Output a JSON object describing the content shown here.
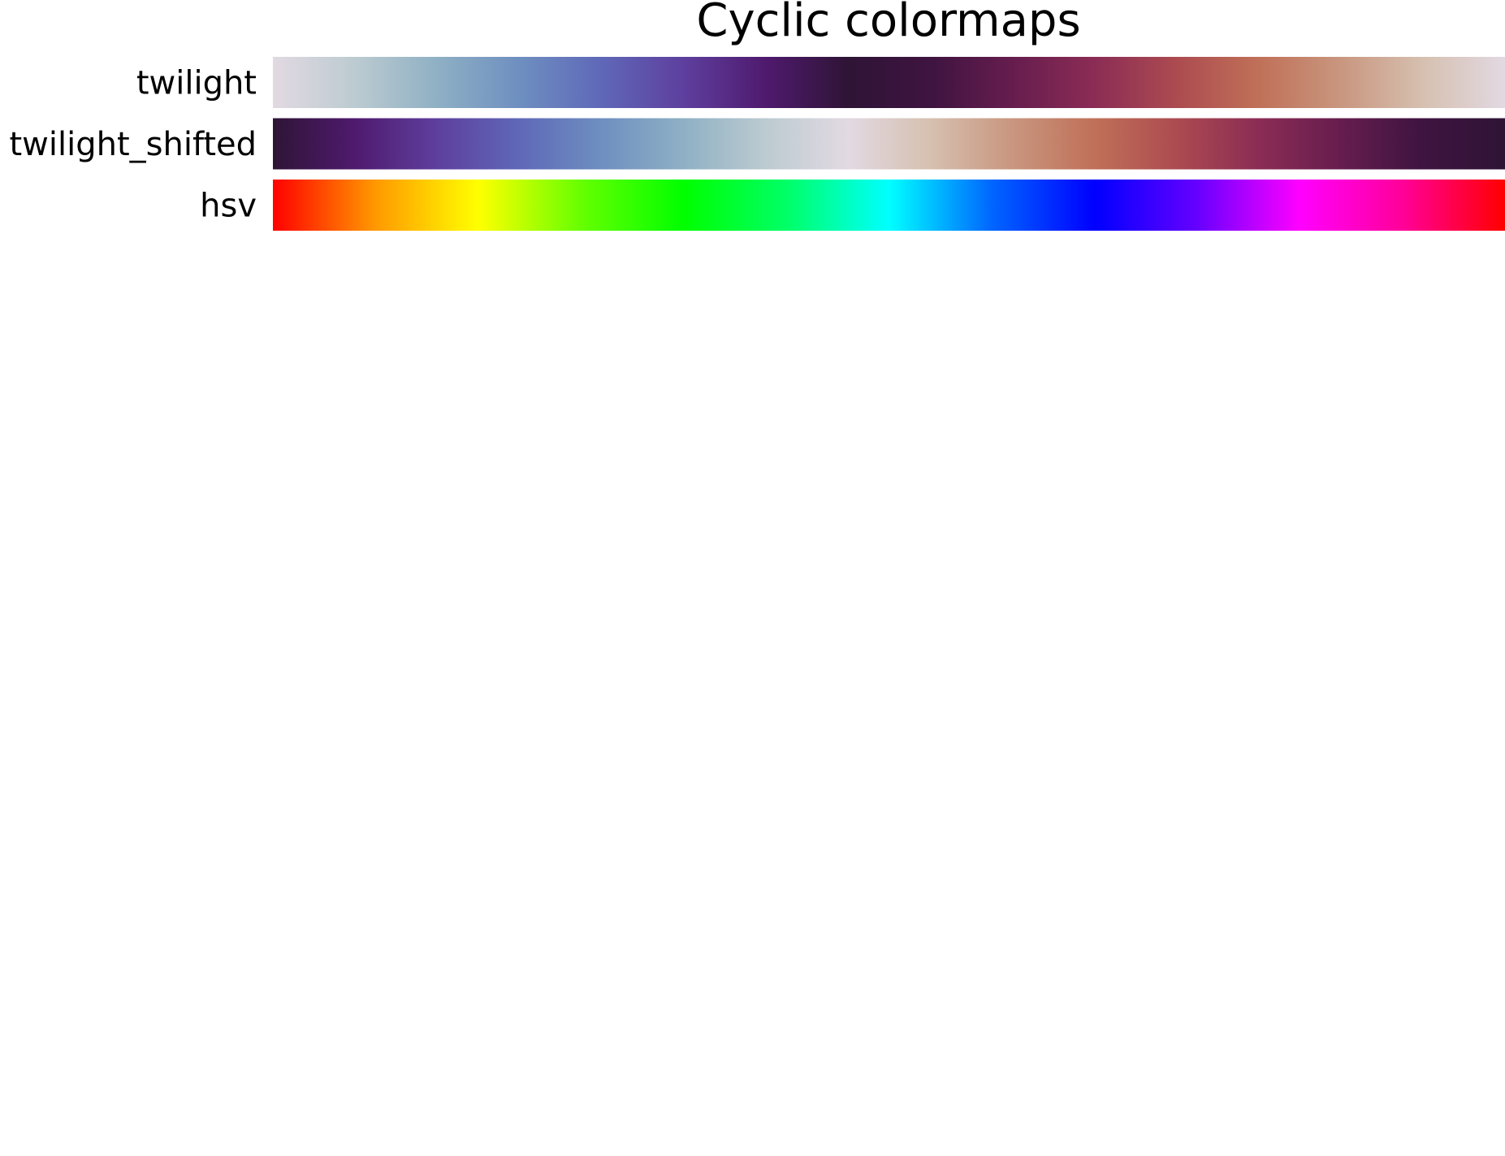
{
  "chart_data": {
    "type": "heatmap",
    "title": "Cyclic colormaps",
    "xlabel": "",
    "ylabel": "",
    "grid": false,
    "legend": "none",
    "colormaps": [
      {
        "name": "twilight",
        "stops": [
          "#e2d9e2",
          "#bccbd1",
          "#8fb0c4",
          "#6e8fc0",
          "#5f68b8",
          "#5e3f9e",
          "#4f1a6e",
          "#2f1436",
          "#3e1440",
          "#661d4e",
          "#8b2c55",
          "#ac4b50",
          "#c07058",
          "#c9967f",
          "#d6c0b0",
          "#e2d9e2"
        ]
      },
      {
        "name": "twilight_shifted",
        "stops": [
          "#2f1436",
          "#4f1a6e",
          "#5e3f9e",
          "#5f68b8",
          "#6e8fc0",
          "#8fb0c4",
          "#bccbd1",
          "#e2d9e2",
          "#d6c0b0",
          "#c9967f",
          "#c07058",
          "#ac4b50",
          "#8b2c55",
          "#661d4e",
          "#3e1440",
          "#2f1436"
        ]
      },
      {
        "name": "hsv",
        "stops": [
          "#ff0000",
          "#ff9900",
          "#ffff00",
          "#66ff00",
          "#00ff00",
          "#00ff66",
          "#00ffff",
          "#0066ff",
          "#0000ff",
          "#6600ff",
          "#ff00ff",
          "#ff0099",
          "#ff0000"
        ]
      }
    ]
  }
}
